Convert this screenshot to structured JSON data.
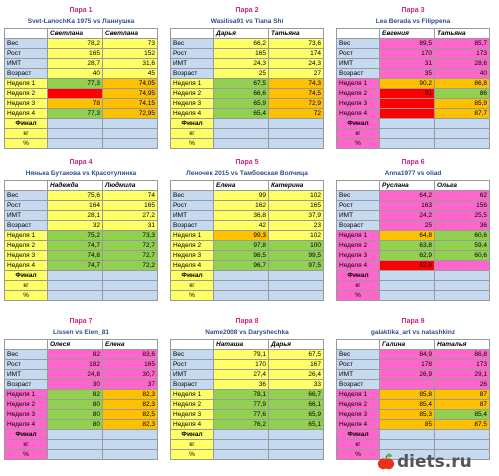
{
  "colors": {
    "blue": "#c5d9f1",
    "pink": "#ff66cc",
    "yellow": "#ffff66",
    "green": "#92d050",
    "orange": "#ffc000",
    "red": "#ff0000",
    "white": "#ffffff",
    "title_magenta": "#d0257a",
    "names_blue": "#2f4f8a"
  },
  "row_labels": [
    "Вес",
    "Рост",
    "ИМТ",
    "Возраст",
    "Неделя 1",
    "Неделя 2",
    "Неделя 3",
    "Неделя 4"
  ],
  "final_labels": [
    "Финал",
    "кг",
    "%"
  ],
  "pairs": [
    {
      "title": "Пара 1",
      "names": "Svet-LanochKa 1975 vs Ланнушка",
      "p1": "Светлана",
      "p2": "Светлана",
      "c1": "yellow",
      "c2": "yellow",
      "rows": [
        [
          "78,2",
          "73"
        ],
        [
          "165",
          "152"
        ],
        [
          "28,7",
          "31,6"
        ],
        [
          "40",
          "45"
        ],
        [
          "77,3",
          "74,05"
        ],
        [
          "",
          "74,95"
        ],
        [
          "78",
          "74,15"
        ],
        [
          "77,3",
          "72,95"
        ]
      ],
      "cells1": [
        "yellow",
        "yellow",
        "yellow",
        "yellow",
        "green",
        "red",
        "orange",
        "green"
      ],
      "cells2": [
        "yellow",
        "yellow",
        "yellow",
        "yellow",
        "orange",
        "orange",
        "orange",
        "orange"
      ]
    },
    {
      "title": "Пара 2",
      "names": "Wasilisa91 vs Tiana Shi",
      "p1": "Дарья",
      "p2": "Татьяна",
      "c1": "yellow",
      "c2": "yellow",
      "rows": [
        [
          "66,2",
          "73,6"
        ],
        [
          "165",
          "174"
        ],
        [
          "24,3",
          "24,3"
        ],
        [
          "25",
          "27"
        ],
        [
          "67,5",
          "74,3"
        ],
        [
          "66,6",
          "74,5"
        ],
        [
          "65,9",
          "72,9"
        ],
        [
          "65,4",
          "72"
        ]
      ],
      "cells1": [
        "yellow",
        "yellow",
        "yellow",
        "yellow",
        "green",
        "green",
        "green",
        "green"
      ],
      "cells2": [
        "yellow",
        "yellow",
        "yellow",
        "yellow",
        "orange",
        "orange",
        "orange",
        "orange"
      ]
    },
    {
      "title": "Пара 3",
      "names": "Lea Berada vs Filippena",
      "p1": "Евгения",
      "p2": "Татьяна",
      "c1": "pink",
      "c2": "pink",
      "rows": [
        [
          "89,5",
          "85,7"
        ],
        [
          "170",
          "173"
        ],
        [
          "31",
          "28,6"
        ],
        [
          "35",
          "40"
        ],
        [
          "90,2",
          "86,8"
        ],
        [
          "91",
          "86"
        ],
        [
          "",
          "85,9"
        ],
        [
          "",
          "87,7"
        ]
      ],
      "cells1": [
        "pink",
        "pink",
        "pink",
        "pink",
        "orange",
        "red",
        "red",
        "red"
      ],
      "cells2": [
        "pink",
        "pink",
        "pink",
        "pink",
        "orange",
        "green",
        "orange",
        "orange"
      ]
    },
    {
      "title": "Пара 4",
      "names": "Нянька Бутакова vs Красотулинка",
      "p1": "Надежда",
      "p2": "Людмила",
      "c1": "yellow",
      "c2": "yellow",
      "rows": [
        [
          "75,6",
          "74"
        ],
        [
          "164",
          "165"
        ],
        [
          "28,1",
          "27,2"
        ],
        [
          "32",
          "31"
        ],
        [
          "75,2",
          "73,3"
        ],
        [
          "74,7",
          "72,7"
        ],
        [
          "74,8",
          "72,7"
        ],
        [
          "74,7",
          "72,2"
        ]
      ],
      "cells1": [
        "yellow",
        "yellow",
        "yellow",
        "yellow",
        "green",
        "green",
        "green",
        "green"
      ],
      "cells2": [
        "yellow",
        "yellow",
        "yellow",
        "yellow",
        "green",
        "green",
        "green",
        "green"
      ]
    },
    {
      "title": "Пара 5",
      "names": "Леночек 2015 vs Тамбовская Волчица",
      "p1": "Елена",
      "p2": "Катерина",
      "c1": "yellow",
      "c2": "yellow",
      "rows": [
        [
          "99",
          "102"
        ],
        [
          "162",
          "165"
        ],
        [
          "36,8",
          "37,9"
        ],
        [
          "42",
          "23"
        ],
        [
          "99,3",
          "102"
        ],
        [
          "97,8",
          "100"
        ],
        [
          "98,5",
          "99,5"
        ],
        [
          "96,7",
          "97,5"
        ]
      ],
      "cells1": [
        "yellow",
        "yellow",
        "yellow",
        "yellow",
        "orange",
        "green",
        "green",
        "green"
      ],
      "cells2": [
        "yellow",
        "yellow",
        "yellow",
        "yellow",
        "yellow",
        "green",
        "green",
        "green"
      ]
    },
    {
      "title": "Пара 6",
      "names": "Anna1977 vs oliad",
      "p1": "Руслана",
      "p2": "Ольга",
      "c1": "pink",
      "c2": "pink",
      "rows": [
        [
          "64,2",
          "62"
        ],
        [
          "163",
          "156"
        ],
        [
          "24,2",
          "25,5"
        ],
        [
          "25",
          "36"
        ],
        [
          "64,8",
          "60,6"
        ],
        [
          "63,8",
          "59,4"
        ],
        [
          "62,9",
          "60,6"
        ],
        [
          "62,8",
          ""
        ]
      ],
      "cells1": [
        "pink",
        "pink",
        "pink",
        "pink",
        "orange",
        "green",
        "green",
        "red"
      ],
      "cells2": [
        "pink",
        "pink",
        "pink",
        "pink",
        "green",
        "green",
        "green",
        "pink"
      ]
    },
    {
      "title": "Пара 7",
      "names": "Lissen vs Elen_81",
      "p1": "Олеся",
      "p2": "Елена",
      "c1": "pink",
      "c2": "pink",
      "rows": [
        [
          "82",
          "83,6"
        ],
        [
          "182",
          "165"
        ],
        [
          "24,8",
          "30,7"
        ],
        [
          "30",
          "37"
        ],
        [
          "82",
          "82,3"
        ],
        [
          "80",
          "82,3"
        ],
        [
          "80",
          "82,5"
        ],
        [
          "80",
          "82,3"
        ]
      ],
      "cells1": [
        "pink",
        "pink",
        "pink",
        "pink",
        "green",
        "green",
        "green",
        "green"
      ],
      "cells2": [
        "pink",
        "pink",
        "pink",
        "pink",
        "orange",
        "orange",
        "orange",
        "orange"
      ]
    },
    {
      "title": "Пара 8",
      "names": "Name2008 vs Daryshechka",
      "p1": "Наташа",
      "p2": "Дарья",
      "c1": "yellow",
      "c2": "yellow",
      "rows": [
        [
          "79,1",
          "67,5"
        ],
        [
          "170",
          "167"
        ],
        [
          "27,4",
          "26,4"
        ],
        [
          "36",
          "33"
        ],
        [
          "78,1",
          "66,7"
        ],
        [
          "77,9",
          "66,1"
        ],
        [
          "77,6",
          "65,9"
        ],
        [
          "76,2",
          "65,1"
        ]
      ],
      "cells1": [
        "yellow",
        "yellow",
        "yellow",
        "yellow",
        "green",
        "green",
        "green",
        "green"
      ],
      "cells2": [
        "yellow",
        "yellow",
        "yellow",
        "yellow",
        "green",
        "green",
        "green",
        "green"
      ]
    },
    {
      "title": "Пара 9",
      "names": "galaktika_art vs natashkinz",
      "p1": "Галина",
      "p2": "Наталья",
      "c1": "pink",
      "c2": "pink",
      "rows": [
        [
          "84,9",
          "86,8"
        ],
        [
          "178",
          "173"
        ],
        [
          "26,9",
          "29,1"
        ],
        [
          "",
          "26"
        ],
        [
          "85,8",
          "87"
        ],
        [
          "85,4",
          "87"
        ],
        [
          "85,3",
          "85,4"
        ],
        [
          "85",
          "87,5"
        ]
      ],
      "cells1": [
        "pink",
        "pink",
        "pink",
        "pink",
        "orange",
        "orange",
        "orange",
        "orange"
      ],
      "cells2": [
        "pink",
        "pink",
        "pink",
        "pink",
        "orange",
        "orange",
        "green",
        "orange"
      ]
    }
  ],
  "logo": {
    "text": "diets.ru"
  }
}
